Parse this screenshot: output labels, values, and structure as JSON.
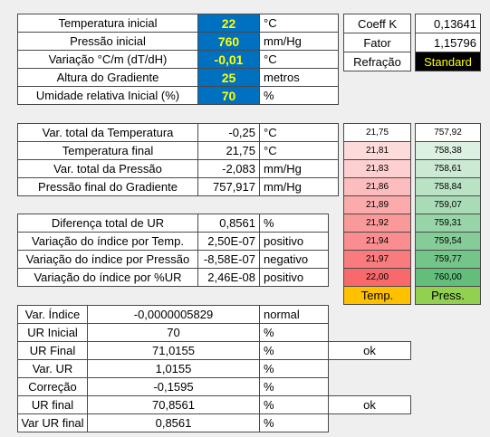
{
  "inputs": {
    "rows": [
      [
        "Temperatura inicial",
        "22",
        "°C"
      ],
      [
        "Pressão inicial",
        "760",
        "mm/Hg"
      ],
      [
        "Variação °C/m (dT/dH)",
        "-0,01",
        "°C"
      ],
      [
        "Altura do Gradiente",
        "25",
        "metros"
      ],
      [
        "Umidade relativa Inicial (%)",
        "70",
        "%"
      ]
    ]
  },
  "constants": {
    "rows": [
      [
        "Coeff K",
        "0,13641"
      ],
      [
        "Fator",
        "1,15796"
      ],
      [
        "Refração",
        "Standard"
      ]
    ]
  },
  "results": {
    "rows": [
      [
        "Var. total da Temperatura",
        "-0,25",
        "°C"
      ],
      [
        "Temperatura final",
        "21,75",
        "°C"
      ],
      [
        "Var. total da Pressão",
        "-2,083",
        "mm/Hg"
      ],
      [
        "Pressão final do Gradiente",
        "757,917",
        "mm/Hg"
      ]
    ]
  },
  "indices": {
    "rows": [
      [
        "Diferença total de UR",
        "0,8561",
        "%"
      ],
      [
        "Variação do índice por Temp.",
        "2,50E-07",
        "positivo"
      ],
      [
        "Variação do índice por Pressão",
        "-8,58E-07",
        "negativo"
      ],
      [
        "Variação do índice por %UR",
        "2,46E-08",
        "positivo"
      ]
    ]
  },
  "scales": {
    "temperature": {
      "values": [
        "21,75",
        "21,81",
        "21,83",
        "21,86",
        "21,89",
        "21,92",
        "21,94",
        "21,97",
        "22,00"
      ],
      "label": "Temp."
    },
    "pressure": {
      "values": [
        "757,92",
        "758,38",
        "758,61",
        "758,84",
        "759,07",
        "759,31",
        "759,54",
        "759,77",
        "760,00"
      ],
      "label": "Press."
    }
  },
  "summary": {
    "rows": [
      [
        "Var. Índice",
        "-0,0000005829",
        "normal"
      ],
      [
        "UR Inicial",
        "70",
        "%"
      ],
      [
        "UR Final",
        "71,0155",
        "%",
        "ok"
      ],
      [
        "Var. UR",
        "1,0155",
        "%"
      ],
      [
        "Correção",
        "-0,1595",
        "%"
      ],
      [
        "UR final",
        "70,8561",
        "%",
        "ok"
      ],
      [
        "Var UR final",
        "0,8561",
        "%"
      ]
    ]
  }
}
